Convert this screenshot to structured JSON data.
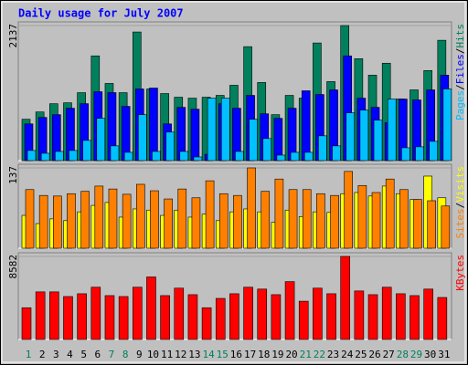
{
  "chart_data": {
    "type": "bar",
    "title": "Daily usage for July 2007",
    "categories": [
      "1",
      "2",
      "3",
      "4",
      "5",
      "6",
      "7",
      "8",
      "9",
      "10",
      "11",
      "12",
      "13",
      "14",
      "15",
      "16",
      "17",
      "18",
      "19",
      "20",
      "21",
      "22",
      "23",
      "24",
      "25",
      "26",
      "27",
      "28",
      "29",
      "30",
      "31"
    ],
    "category_colors": [
      "#00805c",
      "#000000",
      "#000000",
      "#000000",
      "#000000",
      "#000000",
      "#00805c",
      "#00805c",
      "#000000",
      "#000000",
      "#000000",
      "#000000",
      "#000000",
      "#00805c",
      "#00805c",
      "#000000",
      "#000000",
      "#000000",
      "#000000",
      "#000000",
      "#00805c",
      "#00805c",
      "#000000",
      "#000000",
      "#000000",
      "#000000",
      "#000000",
      "#00805c",
      "#00805c",
      "#000000",
      "#000000"
    ],
    "legend_separator": "/",
    "panels": [
      {
        "ylim": [
          0,
          2137
        ],
        "yticks": [
          2137
        ],
        "series": [
          {
            "name": "Hits",
            "color": "#00805c",
            "values": [
              654,
              770,
              900,
              915,
              1075,
              1657,
              1221,
              1075,
              2035,
              1134,
              1061,
              1003,
              988,
              1003,
              1032,
              1192,
              1803,
              1236,
              727,
              1032,
              988,
              1861,
              1250,
              2137,
              1613,
              1352,
              1541,
              974,
              1119,
              1425,
              1904
            ]
          },
          {
            "name": "Files",
            "color": "#0000ff",
            "values": [
              581,
              683,
              727,
              829,
              901,
              1090,
              1076,
              858,
              1134,
              1148,
              581,
              843,
              814,
              100,
              900,
              829,
              1032,
              741,
              669,
              829,
              1105,
              1046,
              1119,
              1657,
              988,
              843,
              600,
              974,
              960,
              1119,
              1352
            ]
          },
          {
            "name": "Pages",
            "color": "#00c0ff",
            "values": [
              160,
              116,
              145,
              160,
              320,
              669,
              233,
              131,
              727,
              145,
              451,
              145,
              58,
              988,
              988,
              145,
              654,
              349,
              87,
              131,
              131,
              392,
              233,
              756,
              800,
              640,
              974,
              203,
              218,
              305,
              1134
            ]
          }
        ]
      },
      {
        "ylim": [
          0,
          137
        ],
        "yticks": [
          137
        ],
        "series": [
          {
            "name": "Visits",
            "color": "#ffff00",
            "values": [
              56,
              42,
              50,
              47,
              62,
              73,
              78,
              53,
              67,
              65,
              56,
              65,
              53,
              58,
              47,
              62,
              67,
              62,
              44,
              65,
              54,
              62,
              61,
              93,
              95,
              89,
              106,
              93,
              83,
              123,
              86
            ]
          },
          {
            "name": "Sites",
            "color": "#ff8000",
            "values": [
              100,
              90,
              89,
              93,
              97,
              106,
              101,
              92,
              109,
              98,
              84,
              101,
              86,
              115,
              93,
              90,
              137,
              97,
              118,
              100,
              100,
              93,
              90,
              131,
              107,
              95,
              118,
              100,
              83,
              81,
              72
            ]
          }
        ]
      },
      {
        "ylim": [
          0,
          8582
        ],
        "yticks": [
          8582
        ],
        "series": [
          {
            "name": "KBytes",
            "color": "#ff0000",
            "values": [
              3278,
              4917,
              4917,
              4435,
              4724,
              5400,
              4532,
              4435,
              5400,
              6460,
              4532,
              5303,
              4628,
              3278,
              4242,
              4724,
              5400,
              5206,
              4628,
              5978,
              3953,
              5303,
              4724,
              8582,
              5013,
              4628,
              5400,
              4724,
              4532,
              5206,
              4339
            ]
          }
        ]
      }
    ]
  }
}
